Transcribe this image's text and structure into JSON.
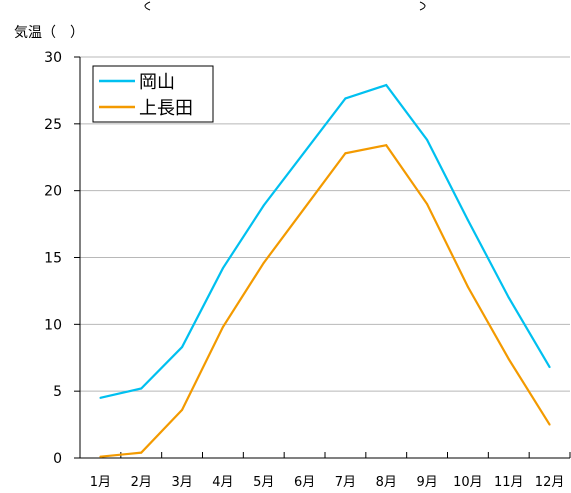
{
  "chart_data": {
    "type": "line",
    "ylabel": "気温（　）",
    "categories": [
      "1月",
      "2月",
      "3月",
      "4月",
      "5月",
      "6月",
      "7月",
      "8月",
      "9月",
      "10月",
      "11月",
      "12月"
    ],
    "ylim": [
      0,
      30
    ],
    "yticks": [
      0,
      5,
      10,
      15,
      20,
      25,
      30
    ],
    "grid": true,
    "legend_position": "top-left",
    "series": [
      {
        "name": "岡山",
        "color": "#00c0f0",
        "values": [
          4.5,
          5.2,
          8.3,
          14.2,
          18.9,
          22.9,
          26.9,
          27.9,
          23.8,
          17.8,
          12.0,
          6.8
        ]
      },
      {
        "name": "上長田",
        "color": "#f39a00",
        "values": [
          0.1,
          0.4,
          3.6,
          9.8,
          14.6,
          18.7,
          22.8,
          23.4,
          19.0,
          12.8,
          7.4,
          2.5
        ]
      }
    ]
  }
}
